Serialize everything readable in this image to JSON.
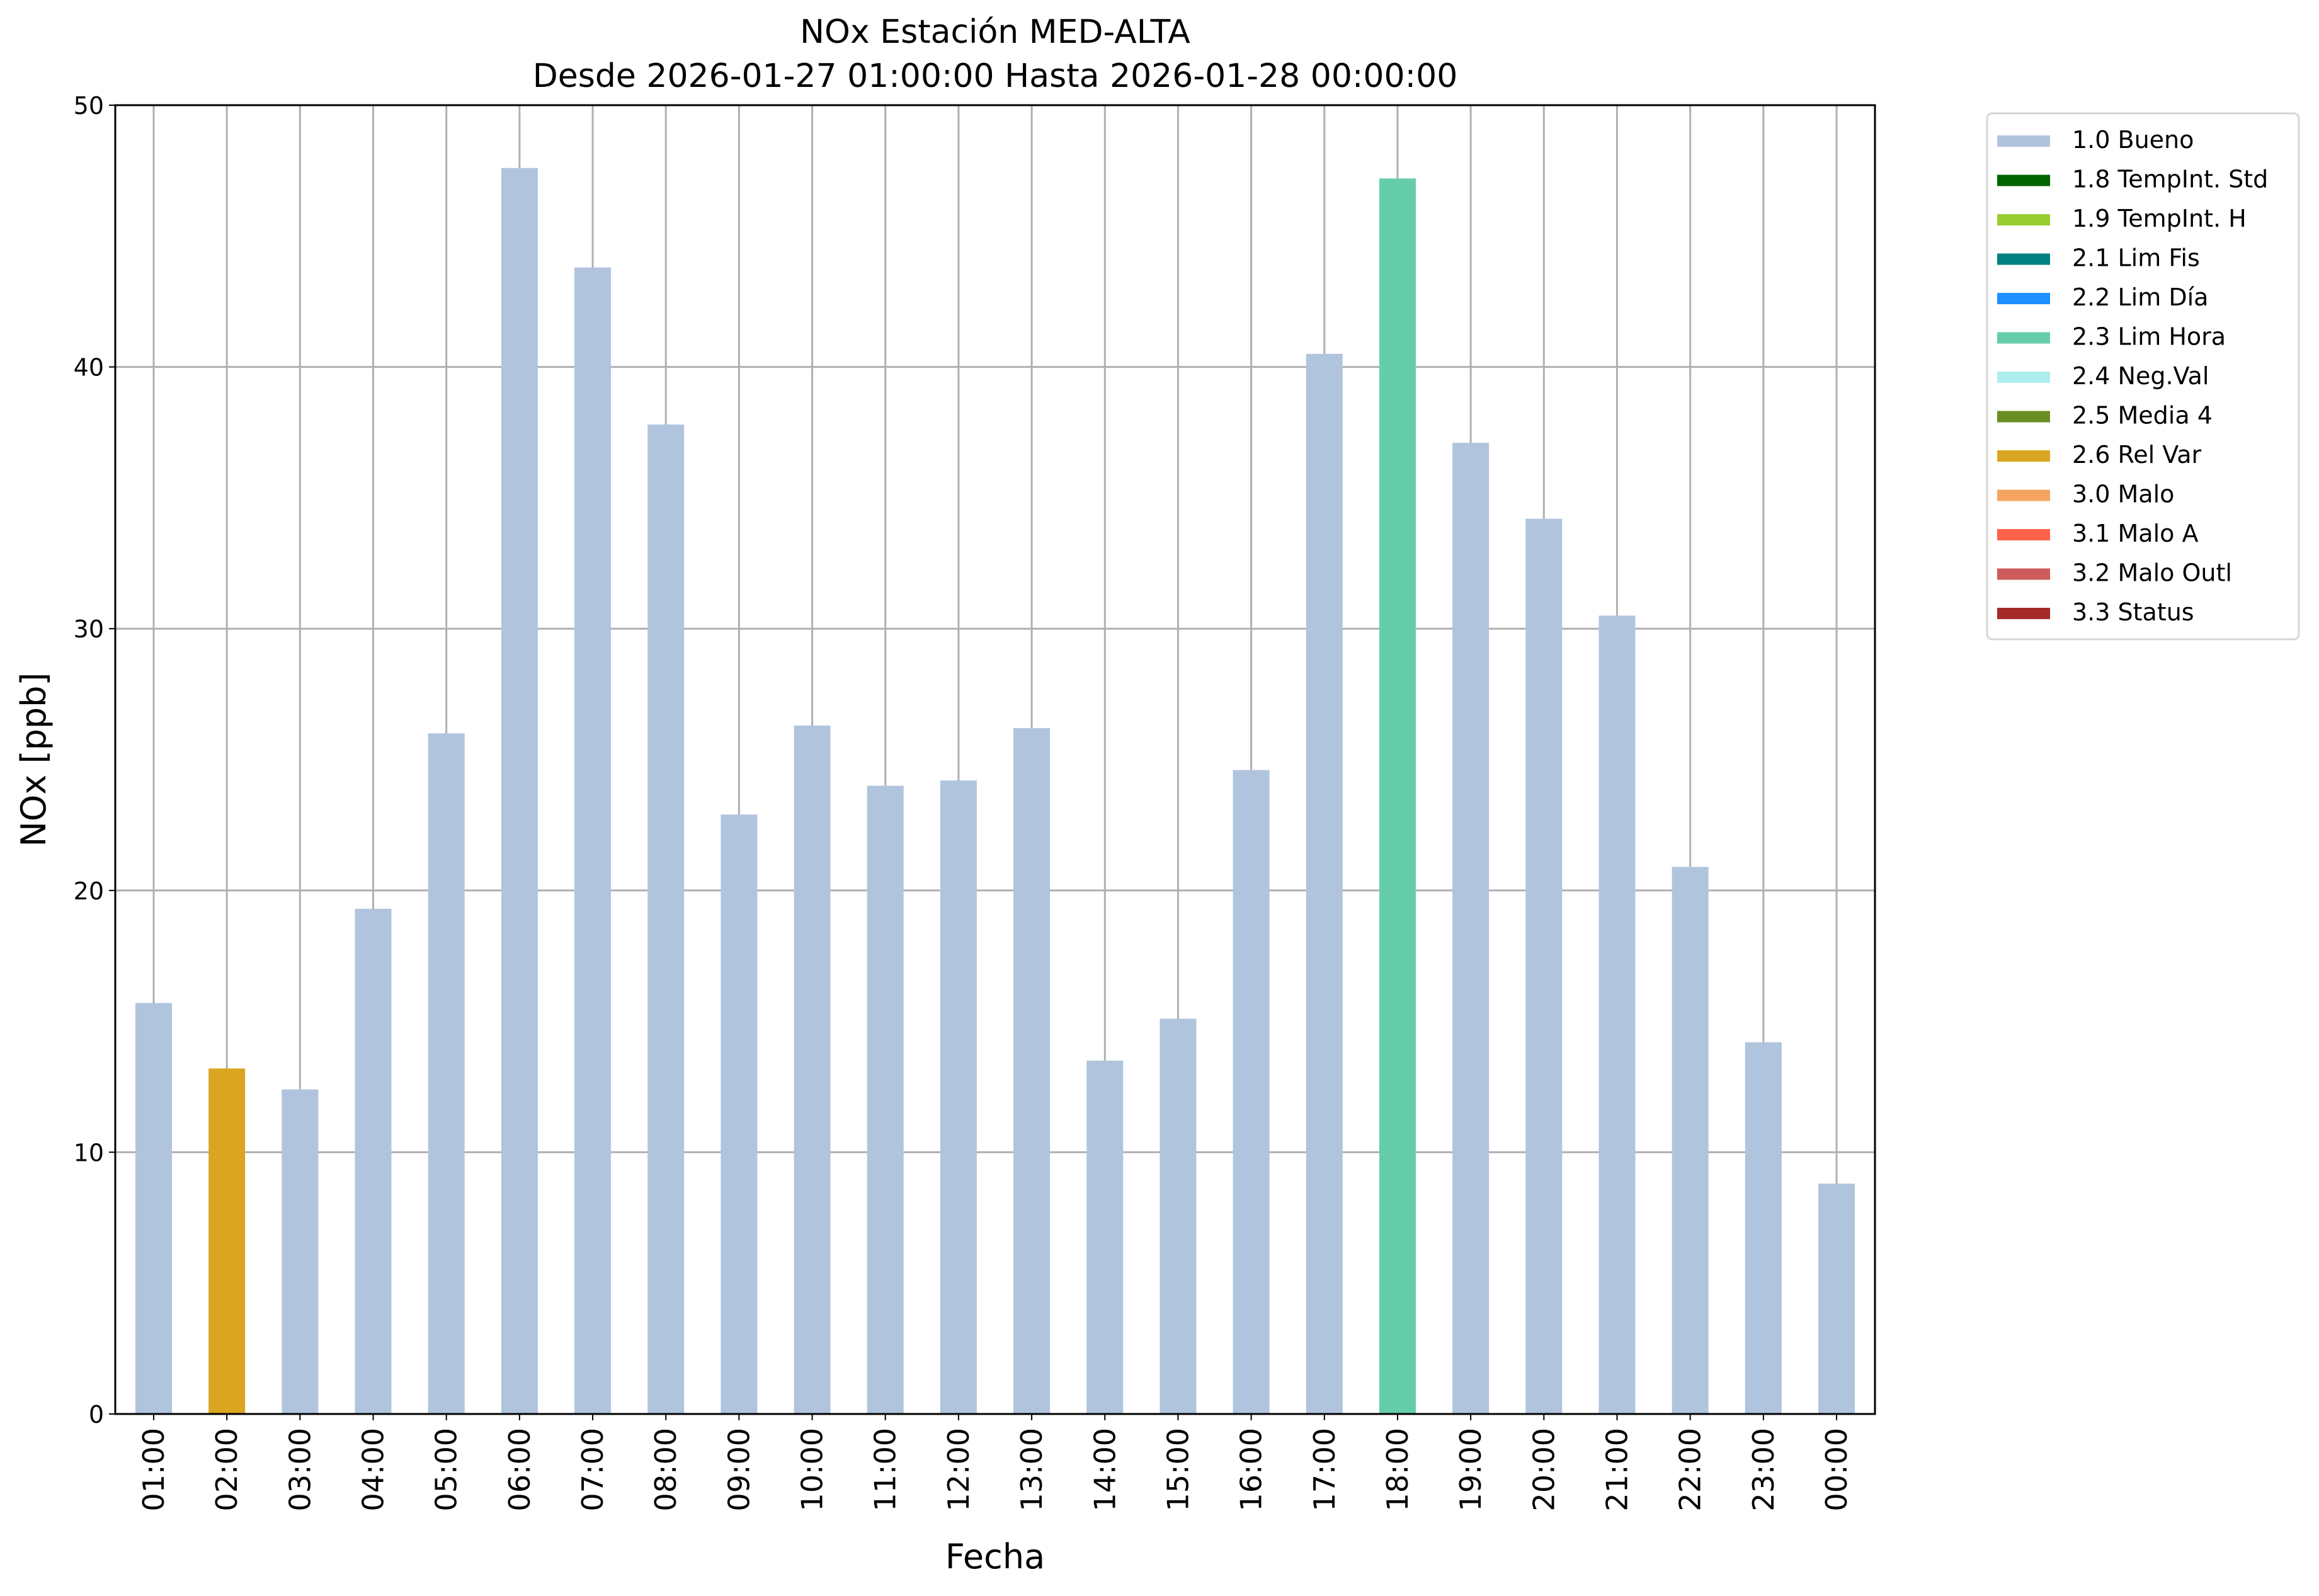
{
  "chart_data": {
    "type": "bar",
    "title": "NOx Estación MED-ALTA",
    "subtitle": "Desde 2026-01-27 01:00:00 Hasta 2026-01-28 00:00:00",
    "xlabel": "Fecha",
    "ylabel": "NOx [ppb]",
    "ylim": [
      0,
      50
    ],
    "yticks": [
      "0",
      "10",
      "20",
      "30",
      "40",
      "50"
    ],
    "grid": true,
    "legend_placement": "outside-top-right",
    "categories": [
      "01:00",
      "02:00",
      "03:00",
      "04:00",
      "05:00",
      "06:00",
      "07:00",
      "08:00",
      "09:00",
      "10:00",
      "11:00",
      "12:00",
      "13:00",
      "14:00",
      "15:00",
      "16:00",
      "17:00",
      "18:00",
      "19:00",
      "20:00",
      "21:00",
      "22:00",
      "23:00",
      "00:00"
    ],
    "values": [
      15.7,
      13.2,
      12.4,
      19.3,
      26.0,
      47.6,
      43.8,
      37.8,
      22.9,
      26.3,
      24.0,
      24.2,
      26.2,
      13.5,
      15.1,
      24.6,
      40.5,
      47.2,
      37.1,
      34.2,
      30.5,
      20.9,
      14.2,
      8.8
    ],
    "flags": [
      "1.0 Bueno",
      "2.6 Rel Var",
      "1.0 Bueno",
      "1.0 Bueno",
      "1.0 Bueno",
      "1.0 Bueno",
      "1.0 Bueno",
      "1.0 Bueno",
      "1.0 Bueno",
      "1.0 Bueno",
      "1.0 Bueno",
      "1.0 Bueno",
      "1.0 Bueno",
      "1.0 Bueno",
      "1.0 Bueno",
      "1.0 Bueno",
      "1.0 Bueno",
      "2.3 Lim Hora",
      "1.0 Bueno",
      "1.0 Bueno",
      "1.0 Bueno",
      "1.0 Bueno",
      "1.0 Bueno",
      "1.0 Bueno"
    ],
    "legend": [
      {
        "label": "1.0 Bueno",
        "color": "#b0c4de"
      },
      {
        "label": "1.8 TempInt. Std",
        "color": "#006400"
      },
      {
        "label": "1.9 TempInt. H",
        "color": "#9acd32"
      },
      {
        "label": "2.1 Lim Fis",
        "color": "#008080"
      },
      {
        "label": "2.2 Lim Día",
        "color": "#1e90ff"
      },
      {
        "label": "2.3 Lim Hora",
        "color": "#66cdaa"
      },
      {
        "label": "2.4 Neg.Val",
        "color": "#afeeee"
      },
      {
        "label": "2.5 Media 4",
        "color": "#6b8e23"
      },
      {
        "label": "2.6 Rel Var",
        "color": "#daa520"
      },
      {
        "label": "3.0 Malo",
        "color": "#f4a460"
      },
      {
        "label": "3.1 Malo A",
        "color": "#ff6347"
      },
      {
        "label": "3.2 Malo Outl",
        "color": "#cd5c5c"
      },
      {
        "label": "3.3 Status",
        "color": "#a52a2a"
      }
    ]
  }
}
